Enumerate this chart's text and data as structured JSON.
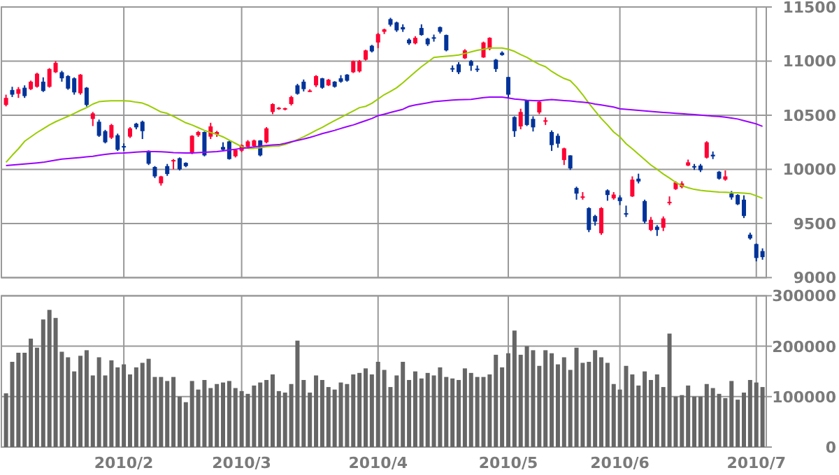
{
  "chart_data": [
    {
      "type": "candlestick",
      "tick_labels": "y",
      "grid": true,
      "ylim": [
        9000,
        11500
      ],
      "yticks": [
        9000,
        9500,
        10000,
        10500,
        11000,
        11500
      ],
      "categories": [
        null,
        null,
        null,
        null,
        null,
        null,
        null,
        null,
        null,
        null,
        null,
        null,
        null,
        null,
        null,
        null,
        null,
        null,
        null,
        "2010/2",
        null,
        null,
        null,
        null,
        null,
        null,
        null,
        null,
        null,
        null,
        null,
        null,
        null,
        null,
        null,
        null,
        null,
        null,
        "2010/3",
        null,
        null,
        null,
        null,
        null,
        null,
        null,
        null,
        null,
        null,
        null,
        null,
        null,
        null,
        null,
        null,
        null,
        null,
        null,
        null,
        null,
        "2010/4",
        null,
        null,
        null,
        null,
        null,
        null,
        null,
        null,
        null,
        null,
        null,
        null,
        null,
        null,
        null,
        null,
        null,
        null,
        null,
        null,
        "2010/5",
        null,
        null,
        null,
        null,
        null,
        null,
        null,
        null,
        null,
        null,
        null,
        null,
        null,
        null,
        null,
        null,
        null,
        "2010/6",
        null,
        null,
        null,
        null,
        null,
        null,
        null,
        null,
        null,
        null,
        null,
        null,
        null,
        null,
        null,
        null,
        null,
        null,
        null,
        null,
        null,
        "2010/7",
        null
      ],
      "ohlc": [
        [
          10595,
          10690,
          10582,
          10660
        ],
        [
          10733,
          10763,
          10668,
          10690
        ],
        [
          10698,
          10760,
          10660,
          10741
        ],
        [
          10754,
          10776,
          10660,
          10677
        ],
        [
          10741,
          10820,
          10733,
          10810
        ],
        [
          10763,
          10892,
          10755,
          10884
        ],
        [
          10810,
          10850,
          10715,
          10724
        ],
        [
          10763,
          10935,
          10755,
          10927
        ],
        [
          10897,
          11000,
          10890,
          10983
        ],
        [
          10897,
          10910,
          10810,
          10841
        ],
        [
          10862,
          10870,
          10735,
          10746
        ],
        [
          10841,
          10850,
          10690,
          10711
        ],
        [
          10703,
          10880,
          10690,
          10875
        ],
        [
          10754,
          10760,
          10580,
          10595
        ],
        [
          10466,
          10530,
          10400,
          10517
        ],
        [
          10440,
          10460,
          10300,
          10310
        ],
        [
          10353,
          10365,
          10240,
          10250
        ],
        [
          10293,
          10420,
          10280,
          10409
        ],
        [
          10315,
          10330,
          10170,
          10181
        ],
        [
          10215,
          10240,
          10170,
          10207
        ],
        [
          10302,
          10390,
          10290,
          10379
        ],
        [
          10422,
          10430,
          10370,
          10388
        ],
        [
          10440,
          10450,
          10280,
          10353
        ],
        [
          10172,
          10175,
          10040,
          10052
        ],
        [
          10022,
          10030,
          9920,
          9935
        ],
        [
          9871,
          9940,
          9850,
          9935
        ],
        [
          10030,
          10050,
          9940,
          9957
        ],
        [
          10080,
          10095,
          10000,
          10086
        ],
        [
          10103,
          10110,
          9990,
          10000
        ],
        [
          10060,
          10065,
          10020,
          10030
        ],
        [
          10151,
          10315,
          10140,
          10310
        ],
        [
          10315,
          10355,
          10300,
          10345
        ],
        [
          10345,
          10350,
          10120,
          10129
        ],
        [
          10302,
          10430,
          10280,
          10397
        ],
        [
          10323,
          10355,
          10300,
          10345
        ],
        [
          10207,
          10250,
          10170,
          10181
        ],
        [
          10258,
          10265,
          10090,
          10095
        ],
        [
          10121,
          10190,
          10110,
          10181
        ],
        [
          10172,
          10230,
          10160,
          10224
        ],
        [
          10207,
          10270,
          10200,
          10258
        ],
        [
          10215,
          10275,
          10200,
          10267
        ],
        [
          10267,
          10270,
          10120,
          10129
        ],
        [
          10250,
          10390,
          10240,
          10379
        ],
        [
          10530,
          10610,
          10510,
          10603
        ],
        [
          10560,
          10575,
          10550,
          10569
        ],
        [
          10555,
          10570,
          10545,
          10565
        ],
        [
          10603,
          10680,
          10590,
          10668
        ],
        [
          10776,
          10790,
          10690,
          10698
        ],
        [
          10810,
          10830,
          10720,
          10741
        ],
        [
          10720,
          10740,
          10715,
          10728
        ],
        [
          10776,
          10870,
          10760,
          10862
        ],
        [
          10841,
          10845,
          10745,
          10754
        ],
        [
          10776,
          10835,
          10770,
          10828
        ],
        [
          10810,
          10815,
          10755,
          10763
        ],
        [
          10841,
          10870,
          10800,
          10810
        ],
        [
          10875,
          10880,
          10810,
          10819
        ],
        [
          10897,
          11005,
          10890,
          11000
        ],
        [
          10905,
          11010,
          10895,
          11000
        ],
        [
          11013,
          11105,
          11005,
          11099
        ],
        [
          11142,
          11150,
          11080,
          11090
        ],
        [
          11172,
          11260,
          11120,
          11250
        ],
        [
          11271,
          11300,
          11250,
          11293
        ],
        [
          11388,
          11400,
          11320,
          11336
        ],
        [
          11357,
          11365,
          11270,
          11284
        ],
        [
          11314,
          11340,
          11270,
          11293
        ],
        [
          11198,
          11210,
          11150,
          11164
        ],
        [
          11164,
          11230,
          11155,
          11215
        ],
        [
          11306,
          11340,
          11235,
          11241
        ],
        [
          11207,
          11215,
          11140,
          11155
        ],
        [
          11220,
          11245,
          11180,
          11215
        ],
        [
          11314,
          11320,
          11255,
          11271
        ],
        [
          11241,
          11245,
          11090,
          11099
        ],
        [
          10935,
          10960,
          10900,
          10927
        ],
        [
          10970,
          10990,
          10880,
          10897
        ],
        [
          11026,
          11110,
          11020,
          11099
        ],
        [
          11000,
          11010,
          10910,
          10957
        ],
        [
          10930,
          10960,
          10900,
          10927
        ],
        [
          11034,
          11180,
          11030,
          11172
        ],
        [
          11112,
          11220,
          11100,
          11215
        ],
        [
          11013,
          11020,
          10900,
          10927
        ],
        [
          11078,
          11090,
          11050,
          11056
        ],
        [
          10853,
          10855,
          10660,
          10690
        ],
        [
          10483,
          10490,
          10300,
          10353
        ],
        [
          10397,
          10560,
          10370,
          10530
        ],
        [
          10638,
          10640,
          10400,
          10410
        ],
        [
          10466,
          10490,
          10350,
          10388
        ],
        [
          10526,
          10630,
          10510,
          10625
        ],
        [
          10448,
          10480,
          10410,
          10453
        ],
        [
          10345,
          10360,
          10170,
          10224
        ],
        [
          10310,
          10330,
          10200,
          10237
        ],
        [
          10086,
          10200,
          10040,
          10194
        ],
        [
          10129,
          10130,
          9995,
          10009
        ],
        [
          9828,
          9840,
          9720,
          9776
        ],
        [
          9745,
          9790,
          9720,
          9750
        ],
        [
          9642,
          9650,
          9420,
          9440
        ],
        [
          9569,
          9580,
          9480,
          9517
        ],
        [
          9410,
          9650,
          9395,
          9642
        ],
        [
          9806,
          9815,
          9710,
          9763
        ],
        [
          9733,
          9790,
          9720,
          9767
        ],
        [
          9741,
          9760,
          9670,
          9707
        ],
        [
          9595,
          9665,
          9560,
          9590
        ],
        [
          9750,
          9935,
          9745,
          9905
        ],
        [
          9914,
          9960,
          9870,
          9888
        ],
        [
          9707,
          9720,
          9500,
          9517
        ],
        [
          9440,
          9560,
          9430,
          9534
        ],
        [
          9470,
          9485,
          9385,
          9440
        ],
        [
          9461,
          9565,
          9430,
          9547
        ],
        [
          9695,
          9750,
          9670,
          9700
        ],
        [
          9818,
          9890,
          9810,
          9879
        ],
        [
          9836,
          9890,
          9825,
          9870
        ],
        [
          10035,
          10090,
          10030,
          10065
        ],
        [
          10030,
          10050,
          9995,
          10018
        ],
        [
          10035,
          10050,
          9975,
          9992
        ],
        [
          10108,
          10260,
          10100,
          10250
        ],
        [
          10135,
          10165,
          10095,
          10120
        ],
        [
          9978,
          9985,
          9905,
          9914
        ],
        [
          9905,
          9990,
          9895,
          9935
        ],
        [
          9776,
          9800,
          9720,
          9741
        ],
        [
          9763,
          9770,
          9670,
          9677
        ],
        [
          9720,
          9760,
          9550,
          9569
        ],
        [
          9397,
          9415,
          9350,
          9362
        ],
        [
          9310,
          9315,
          9150,
          9181
        ],
        [
          9245,
          9270,
          9165,
          9189
        ]
      ],
      "series": [
        {
          "type": "line",
          "color": "#99cc00",
          "values": [
            10065,
            10130,
            10190,
            10259,
            10300,
            10340,
            10375,
            10410,
            10440,
            10465,
            10490,
            10517,
            10545,
            10570,
            10603,
            10625,
            10630,
            10634,
            10634,
            10634,
            10630,
            10620,
            10612,
            10590,
            10560,
            10530,
            10517,
            10490,
            10460,
            10430,
            10410,
            10385,
            10360,
            10340,
            10323,
            10300,
            10270,
            10240,
            10210,
            10194,
            10194,
            10200,
            10210,
            10214,
            10216,
            10230,
            10250,
            10275,
            10300,
            10330,
            10360,
            10388,
            10420,
            10450,
            10480,
            10510,
            10540,
            10570,
            10582,
            10610,
            10650,
            10690,
            10720,
            10754,
            10800,
            10850,
            10900,
            10948,
            10990,
            11034,
            11040,
            11045,
            11050,
            11056,
            11070,
            11085,
            11100,
            11110,
            11121,
            11121,
            11121,
            11110,
            11090,
            11060,
            11034,
            11000,
            10970,
            10948,
            10905,
            10870,
            10840,
            10819,
            10760,
            10690,
            10610,
            10539,
            10470,
            10410,
            10345,
            10300,
            10237,
            10190,
            10140,
            10090,
            10040,
            10000,
            9957,
            9920,
            9880,
            9849,
            9830,
            9815,
            9806,
            9800,
            9795,
            9790,
            9788,
            9785,
            9783,
            9780,
            9776,
            9755,
            9733
          ]
        },
        {
          "type": "line",
          "color": "#9900ff",
          "values": [
            10035,
            10040,
            10045,
            10050,
            10055,
            10060,
            10065,
            10075,
            10085,
            10095,
            10100,
            10105,
            10110,
            10115,
            10121,
            10130,
            10138,
            10145,
            10150,
            10151,
            10155,
            10160,
            10162,
            10164,
            10164,
            10162,
            10160,
            10155,
            10153,
            10151,
            10152,
            10155,
            10158,
            10161,
            10164,
            10170,
            10178,
            10186,
            10194,
            10200,
            10208,
            10214,
            10220,
            10226,
            10228,
            10240,
            10255,
            10268,
            10280,
            10295,
            10312,
            10330,
            10345,
            10360,
            10378,
            10395,
            10410,
            10430,
            10450,
            10470,
            10496,
            10510,
            10525,
            10540,
            10555,
            10582,
            10595,
            10605,
            10615,
            10625,
            10630,
            10635,
            10640,
            10643,
            10645,
            10647,
            10655,
            10662,
            10668,
            10668,
            10668,
            10660,
            10650,
            10645,
            10638,
            10636,
            10634,
            10640,
            10645,
            10640,
            10636,
            10632,
            10625,
            10620,
            10615,
            10603,
            10595,
            10585,
            10575,
            10560,
            10555,
            10550,
            10545,
            10540,
            10535,
            10530,
            10526,
            10522,
            10518,
            10514,
            10510,
            10506,
            10502,
            10496,
            10492,
            10488,
            10482,
            10474,
            10465,
            10450,
            10435,
            10420,
            10397
          ]
        }
      ]
    },
    {
      "type": "bar",
      "grid": true,
      "color": "#666666",
      "ylim": [
        0,
        300000
      ],
      "yticks": [
        0,
        100000,
        200000,
        300000
      ],
      "categories": [
        null,
        null,
        null,
        null,
        null,
        null,
        null,
        null,
        null,
        null,
        null,
        null,
        null,
        null,
        null,
        null,
        null,
        null,
        null,
        "2010/2",
        null,
        null,
        null,
        null,
        null,
        null,
        null,
        null,
        null,
        null,
        null,
        null,
        null,
        null,
        null,
        null,
        null,
        null,
        "2010/3",
        null,
        null,
        null,
        null,
        null,
        null,
        null,
        null,
        null,
        null,
        null,
        null,
        null,
        null,
        null,
        null,
        null,
        null,
        null,
        null,
        null,
        "2010/4",
        null,
        null,
        null,
        null,
        null,
        null,
        null,
        null,
        null,
        null,
        null,
        null,
        null,
        null,
        null,
        null,
        null,
        null,
        null,
        null,
        "2010/5",
        null,
        null,
        null,
        null,
        null,
        null,
        null,
        null,
        null,
        null,
        null,
        null,
        null,
        null,
        null,
        null,
        null,
        "2010/6",
        null,
        null,
        null,
        null,
        null,
        null,
        null,
        null,
        null,
        null,
        null,
        null,
        null,
        null,
        null,
        null,
        null,
        null,
        null,
        null,
        null,
        "2010/7",
        null
      ],
      "values": [
        106500,
        169000,
        187000,
        187000,
        215000,
        197000,
        253000,
        272000,
        256000,
        189000,
        178000,
        150000,
        181000,
        192000,
        142000,
        178000,
        142000,
        172000,
        158000,
        164000,
        144000,
        158000,
        167000,
        175000,
        139000,
        139000,
        131000,
        139000,
        100000,
        89000,
        131000,
        114000,
        133000,
        117000,
        125000,
        128000,
        131000,
        117000,
        111000,
        105500,
        122000,
        128000,
        133000,
        144000,
        111000,
        108000,
        125000,
        211000,
        133000,
        108000,
        142000,
        133000,
        119000,
        114000,
        128000,
        125000,
        144000,
        147000,
        156000,
        144000,
        169000,
        153000,
        119000,
        142000,
        169000,
        133000,
        150000,
        136000,
        147000,
        142000,
        158000,
        139000,
        136000,
        133000,
        156000,
        147000,
        139000,
        139000,
        144000,
        183000,
        158000,
        186000,
        231000,
        183000,
        200000,
        192000,
        161000,
        192000,
        186000,
        164000,
        178000,
        153000,
        197000,
        167000,
        169000,
        192000,
        178000,
        167000,
        125000,
        114000,
        161000,
        144000,
        122000,
        150000,
        133000,
        144000,
        119000,
        225000,
        100000,
        103000,
        122000,
        100000,
        100000,
        125000,
        117000,
        105500,
        97000,
        131000,
        94000,
        108000,
        133000,
        128000,
        119000
      ]
    }
  ]
}
